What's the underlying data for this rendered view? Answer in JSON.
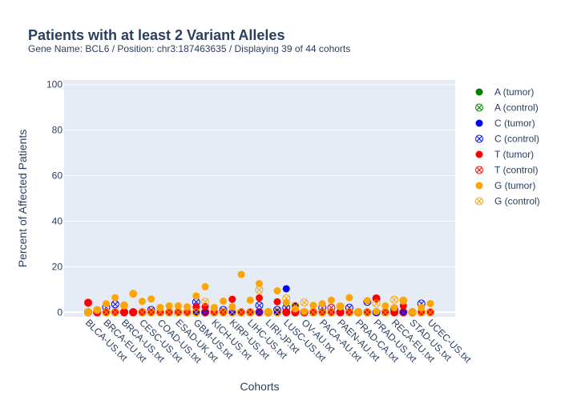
{
  "chart_data": {
    "type": "scatter",
    "title": "Patients with at least 2 Variant Alleles",
    "subtitle": "Gene Name: BCL6 / Position: chr3:187463635 / Displaying 39 of 44 cohorts",
    "xlabel": "Cohorts",
    "ylabel": "Percent of Affected Patients",
    "ylim": [
      -2,
      102
    ],
    "yticks": [
      0,
      20,
      40,
      60,
      80,
      100
    ],
    "grid": true,
    "legend_position": "right",
    "categories": [
      "BLCA-US.txt",
      "",
      "BRCA-EU.txt",
      "",
      "BRCA-US.txt",
      "",
      "CESC-US.txt",
      "",
      "COAD-US.txt",
      "",
      "ESAD-UK.txt",
      "",
      "GBM-US.txt",
      "",
      "KICH-US.txt",
      "",
      "KIRP-US.txt",
      "",
      "LIHC-US.txt",
      "",
      "LIRI-JP.txt",
      "",
      "LUSC-US.txt",
      "",
      "OV-AU.txt",
      "",
      "PACA-AU.txt",
      "",
      "PAEN-AU.txt",
      "",
      "PRAD-CA.txt",
      "",
      "PRAD-US.txt",
      "",
      "RECA-EU.txt",
      "",
      "STAD-US.txt",
      "",
      "UCEC-US.txt"
    ],
    "series": [
      {
        "name": "A (tumor)",
        "color": "#008000",
        "marker": "circle",
        "values": [
          0,
          0.3,
          0,
          0,
          0,
          0,
          0,
          0,
          0,
          0,
          0,
          0,
          0,
          0,
          0,
          0,
          0,
          0,
          0,
          0,
          0,
          0,
          0,
          0,
          0,
          0.3,
          0,
          0,
          0,
          0,
          0,
          0,
          0,
          0,
          0,
          0,
          0,
          0,
          0
        ]
      },
      {
        "name": "A (control)",
        "color": "#008000",
        "marker": "circle-x",
        "values": [
          0,
          0,
          0,
          0,
          0,
          0,
          0,
          0,
          0,
          0,
          0,
          0,
          0,
          0,
          0,
          0,
          0,
          0,
          0,
          0,
          0,
          0,
          0,
          0,
          0,
          0,
          0,
          0,
          0,
          0,
          0,
          0,
          0,
          0,
          0,
          0,
          0,
          0,
          0
        ]
      },
      {
        "name": "C (tumor)",
        "color": "#0000ff",
        "marker": "circle",
        "values": [
          0,
          0,
          0,
          0,
          0,
          0,
          0,
          0,
          0,
          0,
          0,
          0,
          0.3,
          0,
          0,
          0,
          0,
          0,
          0,
          0,
          0,
          0,
          10.3,
          2.7,
          0,
          0,
          0.3,
          0,
          0,
          0,
          0,
          0,
          0,
          0,
          0,
          0,
          0,
          0,
          0
        ]
      },
      {
        "name": "C (control)",
        "color": "#0000ff",
        "marker": "circle-x",
        "values": [
          0,
          0,
          2.2,
          3.5,
          0,
          0,
          0,
          1,
          0,
          0,
          0,
          0,
          4.5,
          0,
          0,
          1,
          0,
          0,
          0,
          3,
          0,
          1,
          2,
          0,
          0,
          0,
          2,
          0,
          0,
          2,
          0,
          4.6,
          0,
          0,
          1.5,
          0,
          0,
          3.8,
          0
        ]
      },
      {
        "name": "T (tumor)",
        "color": "#ff0000",
        "marker": "circle",
        "values": [
          4.2,
          0,
          0,
          0.3,
          0,
          0,
          0,
          0,
          0,
          0,
          0.3,
          0,
          2.3,
          2.4,
          0,
          0,
          5.7,
          0,
          0,
          6.3,
          0,
          4.6,
          0,
          0.4,
          0,
          0,
          0,
          0,
          0,
          0,
          0,
          0,
          6.1,
          0,
          0,
          2.8,
          0,
          0,
          0
        ]
      },
      {
        "name": "T (control)",
        "color": "#ff0000",
        "marker": "circle-x",
        "values": [
          4.2,
          0,
          0,
          0,
          0,
          0,
          0,
          0,
          0,
          0,
          0,
          0,
          0,
          0,
          0,
          0,
          0,
          0,
          0,
          0,
          0,
          0,
          0,
          0,
          0,
          0,
          0,
          2,
          0,
          0,
          0,
          0,
          6.1,
          0,
          0,
          0,
          0,
          0,
          0
        ]
      },
      {
        "name": "G (tumor)",
        "color": "#ffa500",
        "marker": "circle",
        "values": [
          0,
          1,
          3.7,
          6.4,
          3,
          8.1,
          4.8,
          5.8,
          2.1,
          2.8,
          2.8,
          2.4,
          7.2,
          11.2,
          2.1,
          4.9,
          2.4,
          16.6,
          5.3,
          12.6,
          0.3,
          9.4,
          4.3,
          1.5,
          0.3,
          3,
          3.7,
          5.3,
          2.4,
          6.4,
          0.3,
          5.1,
          0.3,
          2.8,
          2,
          5.1,
          0.3,
          2.1,
          3.8
        ]
      },
      {
        "name": "G (control)",
        "color": "#ffa500",
        "marker": "circle-x",
        "values": [
          0,
          1,
          0,
          0,
          3,
          8.1,
          0,
          0,
          0,
          0,
          0,
          0,
          0,
          4.6,
          0,
          0,
          0,
          0,
          0,
          9.8,
          0,
          0,
          6.1,
          2.8,
          4.3,
          0,
          0,
          0,
          2.6,
          0,
          0,
          0,
          3.8,
          0,
          5.5,
          5.1,
          0,
          0,
          0
        ]
      }
    ]
  }
}
